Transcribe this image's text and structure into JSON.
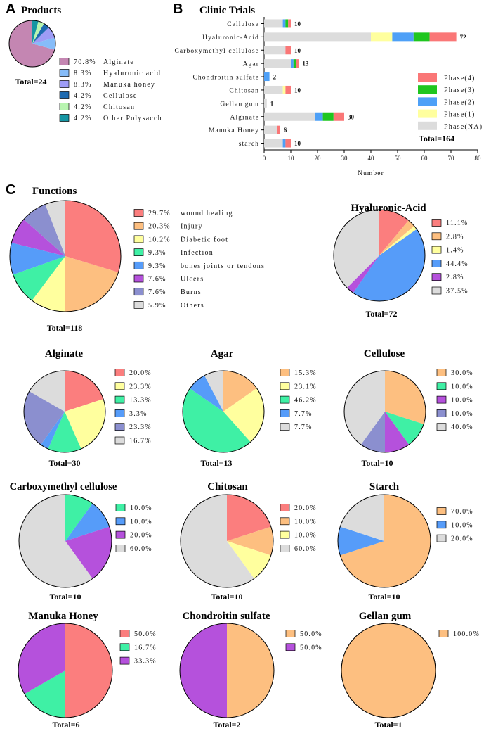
{
  "panels": {
    "a": "A",
    "b": "B",
    "c": "C"
  },
  "colors": {
    "red": "#fb7e7e",
    "orange": "#fdbf80",
    "yellow": "#ffff9e",
    "green": "#3ff0a5",
    "blue": "#569cf9",
    "purple": "#b551dc",
    "lavender": "#8b8fcf",
    "grey": "#dcdcdc",
    "alginate": "#c486b2",
    "ltblue": "#86bcf9",
    "violet": "#9e9cf6",
    "dkblue": "#1d6ab0",
    "ltgreen": "#b8f5b0",
    "teal": "#1595a3",
    "phase4": "#fa7777",
    "phase3": "#1fc61f",
    "phase2": "#4ea0f7",
    "phase1": "#ffff9e",
    "phaseNA": "#dcdcdc"
  },
  "chart_data": [
    {
      "id": "products",
      "type": "pie",
      "title": "Products",
      "total_label": "Total=24",
      "slices": [
        {
          "label": "Alginate",
          "pct": 70.8,
          "pct_label": "70.8%",
          "color": "#c486b2"
        },
        {
          "label": "Hyaluronic acid",
          "pct": 8.3,
          "pct_label": "8.3%",
          "color": "#86bcf9"
        },
        {
          "label": "Manuka honey",
          "pct": 8.3,
          "pct_label": "8.3%",
          "color": "#9e9cf6"
        },
        {
          "label": "Cellulose",
          "pct": 4.2,
          "pct_label": "4.2%",
          "color": "#1d6ab0"
        },
        {
          "label": "Chitosan",
          "pct": 4.2,
          "pct_label": "4.2%",
          "color": "#b8f5b0"
        },
        {
          "label": "Other Polysacch",
          "pct": 4.2,
          "pct_label": "4.2%",
          "color": "#1595a3"
        }
      ]
    },
    {
      "id": "clinic-trials",
      "type": "bar",
      "orientation": "horizontal",
      "stacked": true,
      "title": "Clinic Trials",
      "xlabel": "Number",
      "xlim": [
        0,
        80
      ],
      "xticks": [
        0,
        10,
        20,
        30,
        40,
        50,
        60,
        70,
        80
      ],
      "total_label": "Total=164",
      "categories": [
        "Cellulose",
        "Hyaluronic-Acid",
        "Carboxymethyl cellulose",
        "Agar",
        "Chondroitin sulfate",
        "Chitosan",
        "Gellan gum",
        "Alginate",
        "Manuka Honey",
        "starch"
      ],
      "totals": [
        10,
        72,
        10,
        13,
        2,
        10,
        1,
        30,
        6,
        10
      ],
      "series": [
        {
          "name": "Phase(NA)",
          "color": "#dcdcdc",
          "values": [
            7,
            40,
            8,
            10,
            0,
            7,
            1,
            19,
            5,
            7
          ]
        },
        {
          "name": "Phase(1)",
          "color": "#ffff9e",
          "values": [
            0,
            8,
            0,
            0,
            0,
            1,
            0,
            0,
            0,
            0
          ]
        },
        {
          "name": "Phase(2)",
          "color": "#4ea0f7",
          "values": [
            1,
            8,
            0,
            1,
            2,
            0,
            0,
            3,
            0,
            1
          ]
        },
        {
          "name": "Phase(3)",
          "color": "#1fc61f",
          "values": [
            1,
            6,
            0,
            1,
            0,
            0,
            0,
            4,
            0,
            0
          ]
        },
        {
          "name": "Phase(4)",
          "color": "#fa7777",
          "values": [
            1,
            10,
            2,
            1,
            0,
            2,
            0,
            4,
            1,
            2
          ]
        }
      ],
      "legend_order": [
        "Phase(4)",
        "Phase(3)",
        "Phase(2)",
        "Phase(1)",
        "Phase(NA)"
      ]
    },
    {
      "id": "functions",
      "type": "pie",
      "title": "Functions",
      "total_label": "Total=118",
      "slices": [
        {
          "label": "wound healing",
          "pct": 29.7,
          "pct_label": "29.7%",
          "color": "#fb7e7e"
        },
        {
          "label": "Injury",
          "pct": 20.3,
          "pct_label": "20.3%",
          "color": "#fdbf80"
        },
        {
          "label": "Diabetic foot",
          "pct": 10.2,
          "pct_label": "10.2%",
          "color": "#ffff9e"
        },
        {
          "label": "Infection",
          "pct": 9.3,
          "pct_label": "9.3%",
          "color": "#3ff0a5"
        },
        {
          "label": "bones joints or tendons",
          "pct": 9.3,
          "pct_label": "9.3%",
          "color": "#569cf9"
        },
        {
          "label": "Ulcers",
          "pct": 7.6,
          "pct_label": "7.6%",
          "color": "#b551dc"
        },
        {
          "label": "Burns",
          "pct": 7.6,
          "pct_label": "7.6%",
          "color": "#8b8fcf"
        },
        {
          "label": "Others",
          "pct": 5.9,
          "pct_label": "5.9%",
          "color": "#dcdcdc"
        }
      ]
    },
    {
      "id": "hyaluronic-acid",
      "type": "pie",
      "title": "Hyaluronic-Acid",
      "total_label": "Total=72",
      "slices": [
        {
          "label": "",
          "pct": 11.1,
          "pct_label": "11.1%",
          "color": "#fb7e7e"
        },
        {
          "label": "",
          "pct": 2.8,
          "pct_label": "2.8%",
          "color": "#fdbf80"
        },
        {
          "label": "",
          "pct": 1.4,
          "pct_label": "1.4%",
          "color": "#ffff9e"
        },
        {
          "label": "",
          "pct": 44.4,
          "pct_label": "44.4%",
          "color": "#569cf9"
        },
        {
          "label": "",
          "pct": 2.8,
          "pct_label": "2.8%",
          "color": "#b551dc"
        },
        {
          "label": "",
          "pct": 37.5,
          "pct_label": "37.5%",
          "color": "#dcdcdc"
        }
      ]
    },
    {
      "id": "alginate",
      "type": "pie",
      "title": "Alginate",
      "total_label": "Total=30",
      "slices": [
        {
          "label": "",
          "pct": 20.0,
          "pct_label": "20.0%",
          "color": "#fb7e7e"
        },
        {
          "label": "",
          "pct": 23.3,
          "pct_label": "23.3%",
          "color": "#ffff9e"
        },
        {
          "label": "",
          "pct": 13.3,
          "pct_label": "13.3%",
          "color": "#3ff0a5"
        },
        {
          "label": "",
          "pct": 3.3,
          "pct_label": "3.3%",
          "color": "#569cf9"
        },
        {
          "label": "",
          "pct": 23.3,
          "pct_label": "23.3%",
          "color": "#8b8fcf"
        },
        {
          "label": "",
          "pct": 16.7,
          "pct_label": "16.7%",
          "color": "#dcdcdc"
        }
      ]
    },
    {
      "id": "agar",
      "type": "pie",
      "title": "Agar",
      "total_label": "Total=13",
      "slices": [
        {
          "label": "",
          "pct": 15.3,
          "pct_label": "15.3%",
          "color": "#fdbf80"
        },
        {
          "label": "",
          "pct": 23.1,
          "pct_label": "23.1%",
          "color": "#ffff9e"
        },
        {
          "label": "",
          "pct": 46.2,
          "pct_label": "46.2%",
          "color": "#3ff0a5"
        },
        {
          "label": "",
          "pct": 7.7,
          "pct_label": "7.7%",
          "color": "#569cf9"
        },
        {
          "label": "",
          "pct": 7.7,
          "pct_label": "7.7%",
          "color": "#dcdcdc"
        }
      ]
    },
    {
      "id": "cellulose",
      "type": "pie",
      "title": "Cellulose",
      "total_label": "Total=10",
      "slices": [
        {
          "label": "",
          "pct": 30.0,
          "pct_label": "30.0%",
          "color": "#fdbf80"
        },
        {
          "label": "",
          "pct": 10.0,
          "pct_label": "10.0%",
          "color": "#3ff0a5"
        },
        {
          "label": "",
          "pct": 10.0,
          "pct_label": "10.0%",
          "color": "#b551dc"
        },
        {
          "label": "",
          "pct": 10.0,
          "pct_label": "10.0%",
          "color": "#8b8fcf"
        },
        {
          "label": "",
          "pct": 40.0,
          "pct_label": "40.0%",
          "color": "#dcdcdc"
        }
      ]
    },
    {
      "id": "carboxymethyl-cellulose",
      "type": "pie",
      "title": "Carboxymethyl cellulose",
      "total_label": "Total=10",
      "slices": [
        {
          "label": "",
          "pct": 10.0,
          "pct_label": "10.0%",
          "color": "#3ff0a5"
        },
        {
          "label": "",
          "pct": 10.0,
          "pct_label": "10.0%",
          "color": "#569cf9"
        },
        {
          "label": "",
          "pct": 20.0,
          "pct_label": "20.0%",
          "color": "#b551dc"
        },
        {
          "label": "",
          "pct": 60.0,
          "pct_label": "60.0%",
          "color": "#dcdcdc"
        }
      ]
    },
    {
      "id": "chitosan",
      "type": "pie",
      "title": "Chitosan",
      "total_label": "Total=10",
      "slices": [
        {
          "label": "",
          "pct": 20.0,
          "pct_label": "20.0%",
          "color": "#fb7e7e"
        },
        {
          "label": "",
          "pct": 10.0,
          "pct_label": "10.0%",
          "color": "#fdbf80"
        },
        {
          "label": "",
          "pct": 10.0,
          "pct_label": "10.0%",
          "color": "#ffff9e"
        },
        {
          "label": "",
          "pct": 60.0,
          "pct_label": "60.0%",
          "color": "#dcdcdc"
        }
      ]
    },
    {
      "id": "starch",
      "type": "pie",
      "title": "Starch",
      "total_label": "Total=10",
      "slices": [
        {
          "label": "",
          "pct": 70.0,
          "pct_label": "70.0%",
          "color": "#fdbf80"
        },
        {
          "label": "",
          "pct": 10.0,
          "pct_label": "10.0%",
          "color": "#569cf9"
        },
        {
          "label": "",
          "pct": 20.0,
          "pct_label": "20.0%",
          "color": "#dcdcdc"
        }
      ]
    },
    {
      "id": "manuka-honey",
      "type": "pie",
      "title": "Manuka Honey",
      "total_label": "Total=6",
      "slices": [
        {
          "label": "",
          "pct": 50.0,
          "pct_label": "50.0%",
          "color": "#fb7e7e"
        },
        {
          "label": "",
          "pct": 16.7,
          "pct_label": "16.7%",
          "color": "#3ff0a5"
        },
        {
          "label": "",
          "pct": 33.3,
          "pct_label": "33.3%",
          "color": "#b551dc"
        }
      ]
    },
    {
      "id": "chondroitin-sulfate",
      "type": "pie",
      "title": "Chondroitin sulfate",
      "total_label": "Total=2",
      "slices": [
        {
          "label": "",
          "pct": 50.0,
          "pct_label": "50.0%",
          "color": "#fdbf80"
        },
        {
          "label": "",
          "pct": 50.0,
          "pct_label": "50.0%",
          "color": "#b551dc"
        }
      ]
    },
    {
      "id": "gellan-gum",
      "type": "pie",
      "title": "Gellan gum",
      "total_label": "Total=1",
      "slices": [
        {
          "label": "",
          "pct": 100.0,
          "pct_label": "100.0%",
          "color": "#fdbf80"
        }
      ]
    }
  ]
}
